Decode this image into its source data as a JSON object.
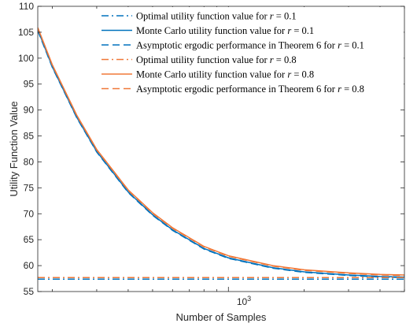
{
  "chart_data": {
    "type": "line",
    "title": "",
    "xlabel": "Number of Samples",
    "ylabel": "Utility Function Value",
    "xscale": "log",
    "xlim": [
      175,
      5000
    ],
    "ylim": [
      55,
      110
    ],
    "yticks": [
      55,
      60,
      65,
      70,
      75,
      80,
      85,
      90,
      95,
      100,
      105,
      110
    ],
    "xtick_label_base": "10",
    "xtick_label_exp": "3",
    "grid": false,
    "legend_position": "top-right",
    "colors": {
      "blue": "#0072bd",
      "orange": "#f07838"
    },
    "x": [
      175,
      200,
      250,
      300,
      400,
      500,
      600,
      800,
      1000,
      1500,
      2000,
      3000,
      4000,
      5000
    ],
    "series": [
      {
        "name": "Optimal utility function value for r = 0.1",
        "legend_prefix": "Optimal utility function value for ",
        "legend_var": "r",
        "legend_suffix": " = 0.1",
        "color": "#0072bd",
        "style": "dashdot",
        "values": [
          57.4,
          57.4,
          57.4,
          57.4,
          57.4,
          57.4,
          57.4,
          57.4,
          57.4,
          57.4,
          57.4,
          57.4,
          57.4,
          57.4
        ]
      },
      {
        "name": "Monte Carlo utility function value for r = 0.1",
        "legend_prefix": "Monte Carlo utility function value for ",
        "legend_var": "r",
        "legend_suffix": " = 0.1",
        "color": "#0072bd",
        "style": "solid",
        "values": [
          105.5,
          98.3,
          88.6,
          82.0,
          74.2,
          69.8,
          66.9,
          63.3,
          61.5,
          59.6,
          58.8,
          58.2,
          57.9,
          57.8
        ]
      },
      {
        "name": "Asymptotic ergodic performance in Theorem 6 for r = 0.1",
        "legend_prefix": "Asymptotic ergodic performance in Theorem 6 for ",
        "legend_var": "r",
        "legend_suffix": " = 0.1",
        "color": "#0072bd",
        "style": "dashed",
        "values": [
          105.3,
          98.2,
          88.5,
          81.9,
          74.1,
          69.7,
          66.8,
          63.2,
          61.4,
          59.5,
          58.7,
          58.1,
          57.8,
          57.7
        ]
      },
      {
        "name": "Optimal utility function value for r = 0.8",
        "legend_prefix": "Optimal utility function value for ",
        "legend_var": "r",
        "legend_suffix": " = 0.8",
        "color": "#f07838",
        "style": "dashdot",
        "values": [
          57.7,
          57.7,
          57.7,
          57.7,
          57.7,
          57.7,
          57.7,
          57.7,
          57.7,
          57.7,
          57.7,
          57.7,
          57.7,
          57.7
        ]
      },
      {
        "name": "Monte Carlo utility function value for r = 0.8",
        "legend_prefix": "Monte Carlo utility function value for ",
        "legend_var": "r",
        "legend_suffix": " = 0.8",
        "color": "#f07838",
        "style": "solid",
        "values": [
          105.9,
          98.7,
          89.0,
          82.4,
          74.6,
          70.2,
          67.3,
          63.7,
          61.9,
          60.0,
          59.2,
          58.6,
          58.3,
          58.2
        ]
      },
      {
        "name": "Asymptotic ergodic performance in Theorem 6 for r = 0.8",
        "legend_prefix": "Asymptotic ergodic performance in Theorem 6 for ",
        "legend_var": "r",
        "legend_suffix": " = 0.8",
        "color": "#f07838",
        "style": "dashed",
        "values": [
          105.8,
          98.6,
          88.9,
          82.3,
          74.5,
          70.1,
          67.2,
          63.6,
          61.8,
          59.9,
          59.1,
          58.5,
          58.2,
          58.1
        ]
      }
    ]
  }
}
